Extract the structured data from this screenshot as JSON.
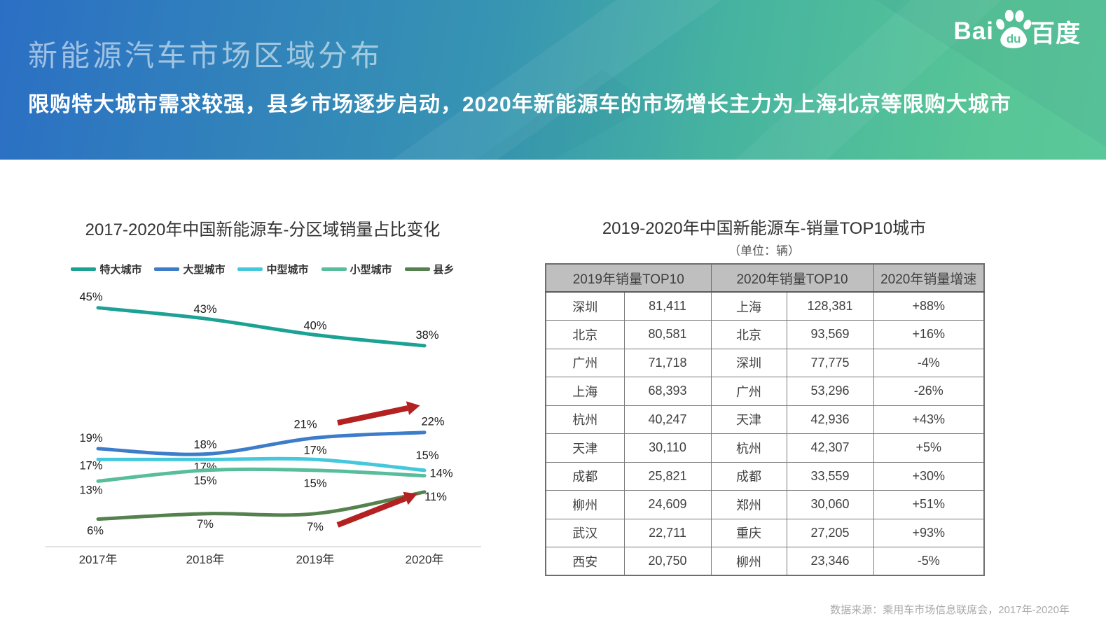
{
  "header": {
    "title": "新能源汽车市场区域分布",
    "subtitle": "限购特大城市需求较强，县乡市场逐步启动，2020年新能源车的市场增长主力为上海北京等限购大城市",
    "logo": {
      "bai": "Bai",
      "du": "du",
      "cn": "百度"
    }
  },
  "chart_data": {
    "type": "line",
    "title": "2017-2020年中国新能源车-分区域销量占比变化",
    "categories": [
      "2017年",
      "2018年",
      "2019年",
      "2020年"
    ],
    "unit": "%",
    "ylim": [
      0,
      48
    ],
    "grid": false,
    "legend_position": "top",
    "series": [
      {
        "name": "特大城市",
        "color": "#1ca294",
        "values": [
          45,
          43,
          40,
          38
        ]
      },
      {
        "name": "大型城市",
        "color": "#3d7cc9",
        "values": [
          19,
          18,
          21,
          22
        ]
      },
      {
        "name": "中型城市",
        "color": "#45c8dc",
        "values": [
          17,
          17,
          17,
          15
        ]
      },
      {
        "name": "小型城市",
        "color": "#57bd9b",
        "values": [
          13,
          15,
          15,
          14
        ]
      },
      {
        "name": "县乡",
        "color": "#55814f",
        "values": [
          6,
          7,
          7,
          11
        ]
      }
    ],
    "annotations": {
      "arrows": [
        {
          "series": "大型城市",
          "from": "2019年",
          "to": "2020年",
          "color": "#b42121"
        },
        {
          "series": "县乡",
          "from": "2019年",
          "to": "2020年",
          "color": "#b42121"
        }
      ]
    }
  },
  "table": {
    "title": "2019-2020年中国新能源车-销量TOP10城市",
    "unit_note": "（单位：辆）",
    "col_groups": [
      "2019年销量TOP10",
      "2020年销量TOP10",
      "2020年销量增速"
    ],
    "rows": [
      {
        "city_2019": "深圳",
        "sales_2019": "81,411",
        "city_2020": "上海",
        "sales_2020": "128,381",
        "growth_2020": "+88%"
      },
      {
        "city_2019": "北京",
        "sales_2019": "80,581",
        "city_2020": "北京",
        "sales_2020": "93,569",
        "growth_2020": "+16%"
      },
      {
        "city_2019": "广州",
        "sales_2019": "71,718",
        "city_2020": "深圳",
        "sales_2020": "77,775",
        "growth_2020": "-4%"
      },
      {
        "city_2019": "上海",
        "sales_2019": "68,393",
        "city_2020": "广州",
        "sales_2020": "53,296",
        "growth_2020": "-26%"
      },
      {
        "city_2019": "杭州",
        "sales_2019": "40,247",
        "city_2020": "天津",
        "sales_2020": "42,936",
        "growth_2020": "+43%"
      },
      {
        "city_2019": "天津",
        "sales_2019": "30,110",
        "city_2020": "杭州",
        "sales_2020": "42,307",
        "growth_2020": "+5%"
      },
      {
        "city_2019": "成都",
        "sales_2019": "25,821",
        "city_2020": "成都",
        "sales_2020": "33,559",
        "growth_2020": "+30%"
      },
      {
        "city_2019": "柳州",
        "sales_2019": "24,609",
        "city_2020": "郑州",
        "sales_2020": "30,060",
        "growth_2020": "+51%"
      },
      {
        "city_2019": "武汉",
        "sales_2019": "22,711",
        "city_2020": "重庆",
        "sales_2020": "27,205",
        "growth_2020": "+93%"
      },
      {
        "city_2019": "西安",
        "sales_2019": "20,750",
        "city_2020": "柳州",
        "sales_2020": "23,346",
        "growth_2020": "-5%"
      }
    ]
  },
  "footer": {
    "source": "数据来源：乘用车市场信息联席会，2017年-2020年"
  }
}
